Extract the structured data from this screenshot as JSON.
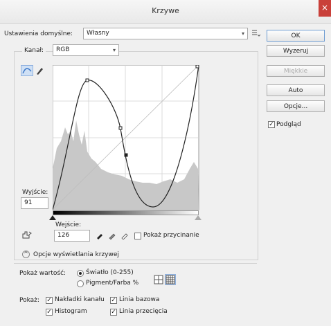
{
  "window": {
    "title": "Krzywe",
    "close_glyph": "×"
  },
  "preset": {
    "label": "Ustawienia domyślne:",
    "value": "Własny"
  },
  "channel": {
    "label": "Kanał:",
    "value": "RGB"
  },
  "buttons": {
    "ok": "OK",
    "reset": "Wyzeruj",
    "smooth": "Miękkie",
    "auto": "Auto",
    "options": "Opcje..."
  },
  "preview": {
    "label": "Podgląd",
    "checked": true
  },
  "output": {
    "label": "Wyjście:",
    "value": "91"
  },
  "input": {
    "label": "Wejście:",
    "value": "126"
  },
  "clipping": {
    "label": "Pokaż przycinanie",
    "checked": false
  },
  "display_options": {
    "label": "Opcje wyświetlania krzywej"
  },
  "show_amount": {
    "label": "Pokaż wartość:",
    "light": "Światło (0-255)",
    "pigment": "Pigment/Farba %",
    "selected": "light"
  },
  "show": {
    "label": "Pokaż:",
    "channel_overlays": "Nakładki kanału",
    "baseline": "Linia bazowa",
    "histogram": "Histogram",
    "intersection": "Linia przecięcia"
  },
  "colors": {
    "accent": "#3c78c8",
    "curve": "#222222",
    "histogram": "#c8c8c8",
    "close": "#c9403a"
  }
}
